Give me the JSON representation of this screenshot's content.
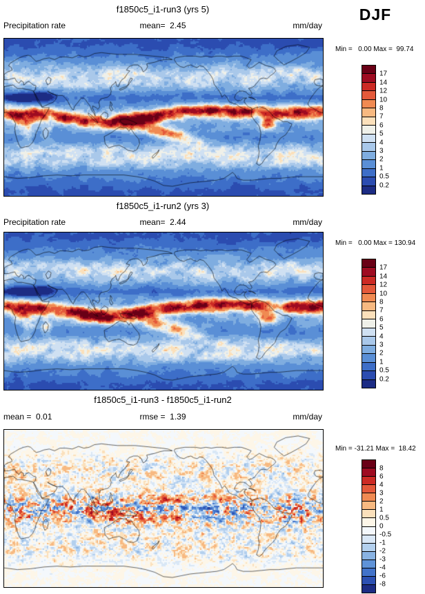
{
  "header": {
    "season": "DJF"
  },
  "panels": [
    {
      "title": "f1850c5_i1-run3 (yrs 5)",
      "var_label": "Precipitation rate",
      "center_label": "mean=  2.45",
      "units": "mm/day",
      "range_label": "Min =   0.00 Max =  99.74",
      "colorbar_labels": [
        "17",
        "14",
        "12",
        "10",
        "8",
        "7",
        "6",
        "5",
        "4",
        "3",
        "2",
        "1",
        "0.5",
        "0.2"
      ],
      "colorbar_colors": [
        "#6a0016",
        "#9e0b21",
        "#cc2a24",
        "#e4593a",
        "#f08a52",
        "#f7b981",
        "#fbe0bb",
        "#eff0e9",
        "#cfe0f2",
        "#a9c8ea",
        "#7fade0",
        "#5a8fd6",
        "#3d6ec8",
        "#2b4cb0",
        "#1c2c84"
      ]
    },
    {
      "title": "f1850c5_i1-run2 (yrs 3)",
      "var_label": "Precipitation rate",
      "center_label": "mean=  2.44",
      "units": "mm/day",
      "range_label": "Min =   0.00 Max = 130.94",
      "colorbar_labels": [
        "17",
        "14",
        "12",
        "10",
        "8",
        "7",
        "6",
        "5",
        "4",
        "3",
        "2",
        "1",
        "0.5",
        "0.2"
      ],
      "colorbar_colors": [
        "#6a0016",
        "#9e0b21",
        "#cc2a24",
        "#e4593a",
        "#f08a52",
        "#f7b981",
        "#fbe0bb",
        "#eff0e9",
        "#cfe0f2",
        "#a9c8ea",
        "#7fade0",
        "#5a8fd6",
        "#3d6ec8",
        "#2b4cb0",
        "#1c2c84"
      ]
    },
    {
      "title": "f1850c5_i1-run3 - f1850c5_i1-run2",
      "var_label": "mean =  0.01",
      "center_label": "rmse =  1.39",
      "units": "mm/day",
      "range_label": "Min = -31.21 Max =  18.42",
      "colorbar_labels": [
        "8",
        "6",
        "4",
        "3",
        "2",
        "1",
        "0.5",
        "0",
        "-0.5",
        "-1",
        "-2",
        "-3",
        "-4",
        "-6",
        "-8"
      ],
      "colorbar_colors": [
        "#6a0016",
        "#9e0b21",
        "#cc2a24",
        "#e4593a",
        "#f08a52",
        "#f7b981",
        "#fbe0bb",
        "#fdf6e8",
        "#f4f8fc",
        "#d9e7f6",
        "#b3d0ee",
        "#89b3e3",
        "#5f93d8",
        "#4273ca",
        "#2c50b2",
        "#1c2c84"
      ]
    }
  ],
  "chart_data": [
    {
      "type": "heatmap",
      "panel": "top",
      "title": "f1850c5_i1-run3 (yrs 5)",
      "variable": "Precipitation rate",
      "season": "DJF",
      "units": "mm/day",
      "mean": 2.45,
      "min": 0.0,
      "max": 99.74,
      "contour_levels": [
        0.2,
        0.5,
        1,
        2,
        3,
        4,
        5,
        6,
        7,
        8,
        10,
        12,
        14,
        17
      ],
      "palette_low_to_high": [
        "#1c2c84",
        "#2b4cb0",
        "#3d6ec8",
        "#5a8fd6",
        "#7fade0",
        "#a9c8ea",
        "#cfe0f2",
        "#eff0e9",
        "#fbe0bb",
        "#f7b981",
        "#f08a52",
        "#e4593a",
        "#cc2a24",
        "#9e0b21",
        "#6a0016"
      ]
    },
    {
      "type": "heatmap",
      "panel": "middle",
      "title": "f1850c5_i1-run2 (yrs 3)",
      "variable": "Precipitation rate",
      "season": "DJF",
      "units": "mm/day",
      "mean": 2.44,
      "min": 0.0,
      "max": 130.94,
      "contour_levels": [
        0.2,
        0.5,
        1,
        2,
        3,
        4,
        5,
        6,
        7,
        8,
        10,
        12,
        14,
        17
      ],
      "palette_low_to_high": [
        "#1c2c84",
        "#2b4cb0",
        "#3d6ec8",
        "#5a8fd6",
        "#7fade0",
        "#a9c8ea",
        "#cfe0f2",
        "#eff0e9",
        "#fbe0bb",
        "#f7b981",
        "#f08a52",
        "#e4593a",
        "#cc2a24",
        "#9e0b21",
        "#6a0016"
      ]
    },
    {
      "type": "heatmap",
      "panel": "bottom",
      "title": "f1850c5_i1-run3 - f1850c5_i1-run2",
      "season": "DJF",
      "units": "mm/day",
      "mean": 0.01,
      "rmse": 1.39,
      "min": -31.21,
      "max": 18.42,
      "contour_levels": [
        -8,
        -6,
        -4,
        -3,
        -2,
        -1,
        -0.5,
        0,
        0.5,
        1,
        2,
        3,
        4,
        6,
        8
      ],
      "palette_low_to_high": [
        "#1c2c84",
        "#2c50b2",
        "#4273ca",
        "#5f93d8",
        "#89b3e3",
        "#b3d0ee",
        "#d9e7f6",
        "#f4f8fc",
        "#fdf6e8",
        "#fbe0bb",
        "#f7b981",
        "#f08a52",
        "#e4593a",
        "#cc2a24",
        "#9e0b21",
        "#6a0016"
      ]
    }
  ]
}
